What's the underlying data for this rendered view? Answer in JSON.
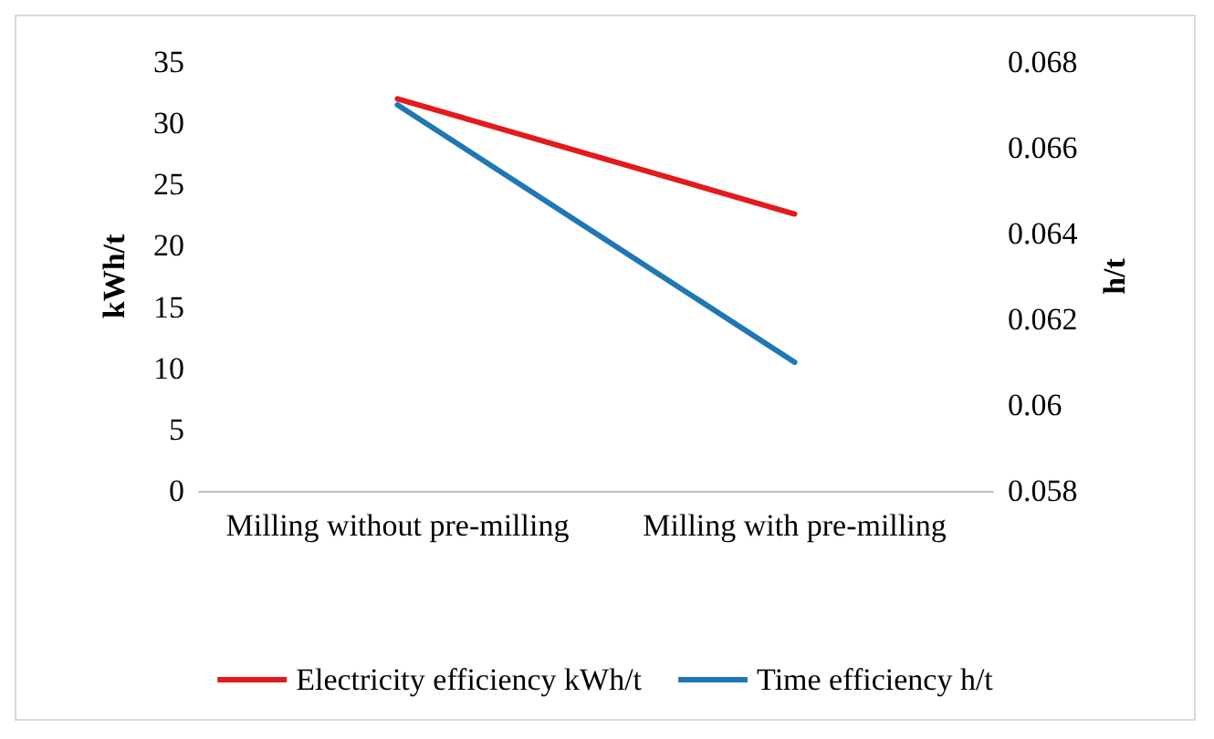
{
  "chart_data": {
    "type": "line",
    "categories": [
      "Milling without pre-milling",
      "Milling with pre-milling"
    ],
    "series": [
      {
        "name": "Electricity efficiency kWh/t",
        "color": "#e31a1c",
        "values": [
          32,
          22.6
        ]
      },
      {
        "name": "Time efficiency h/t",
        "color": "#1f77b4",
        "values": [
          0.067,
          0.061
        ],
        "axis": "y2"
      }
    ],
    "ylabel": "kWh/t",
    "y2label": "h/t",
    "ylim": [
      0,
      35
    ],
    "yticks": [
      0,
      5,
      10,
      15,
      20,
      25,
      30,
      35
    ],
    "y2lim": [
      0.058,
      0.068
    ],
    "y2ticks": [
      0.058,
      0.06,
      0.062,
      0.064,
      0.066,
      0.068
    ],
    "grid": false,
    "legend": "bottom",
    "marker": "none",
    "line_style": "solid"
  }
}
